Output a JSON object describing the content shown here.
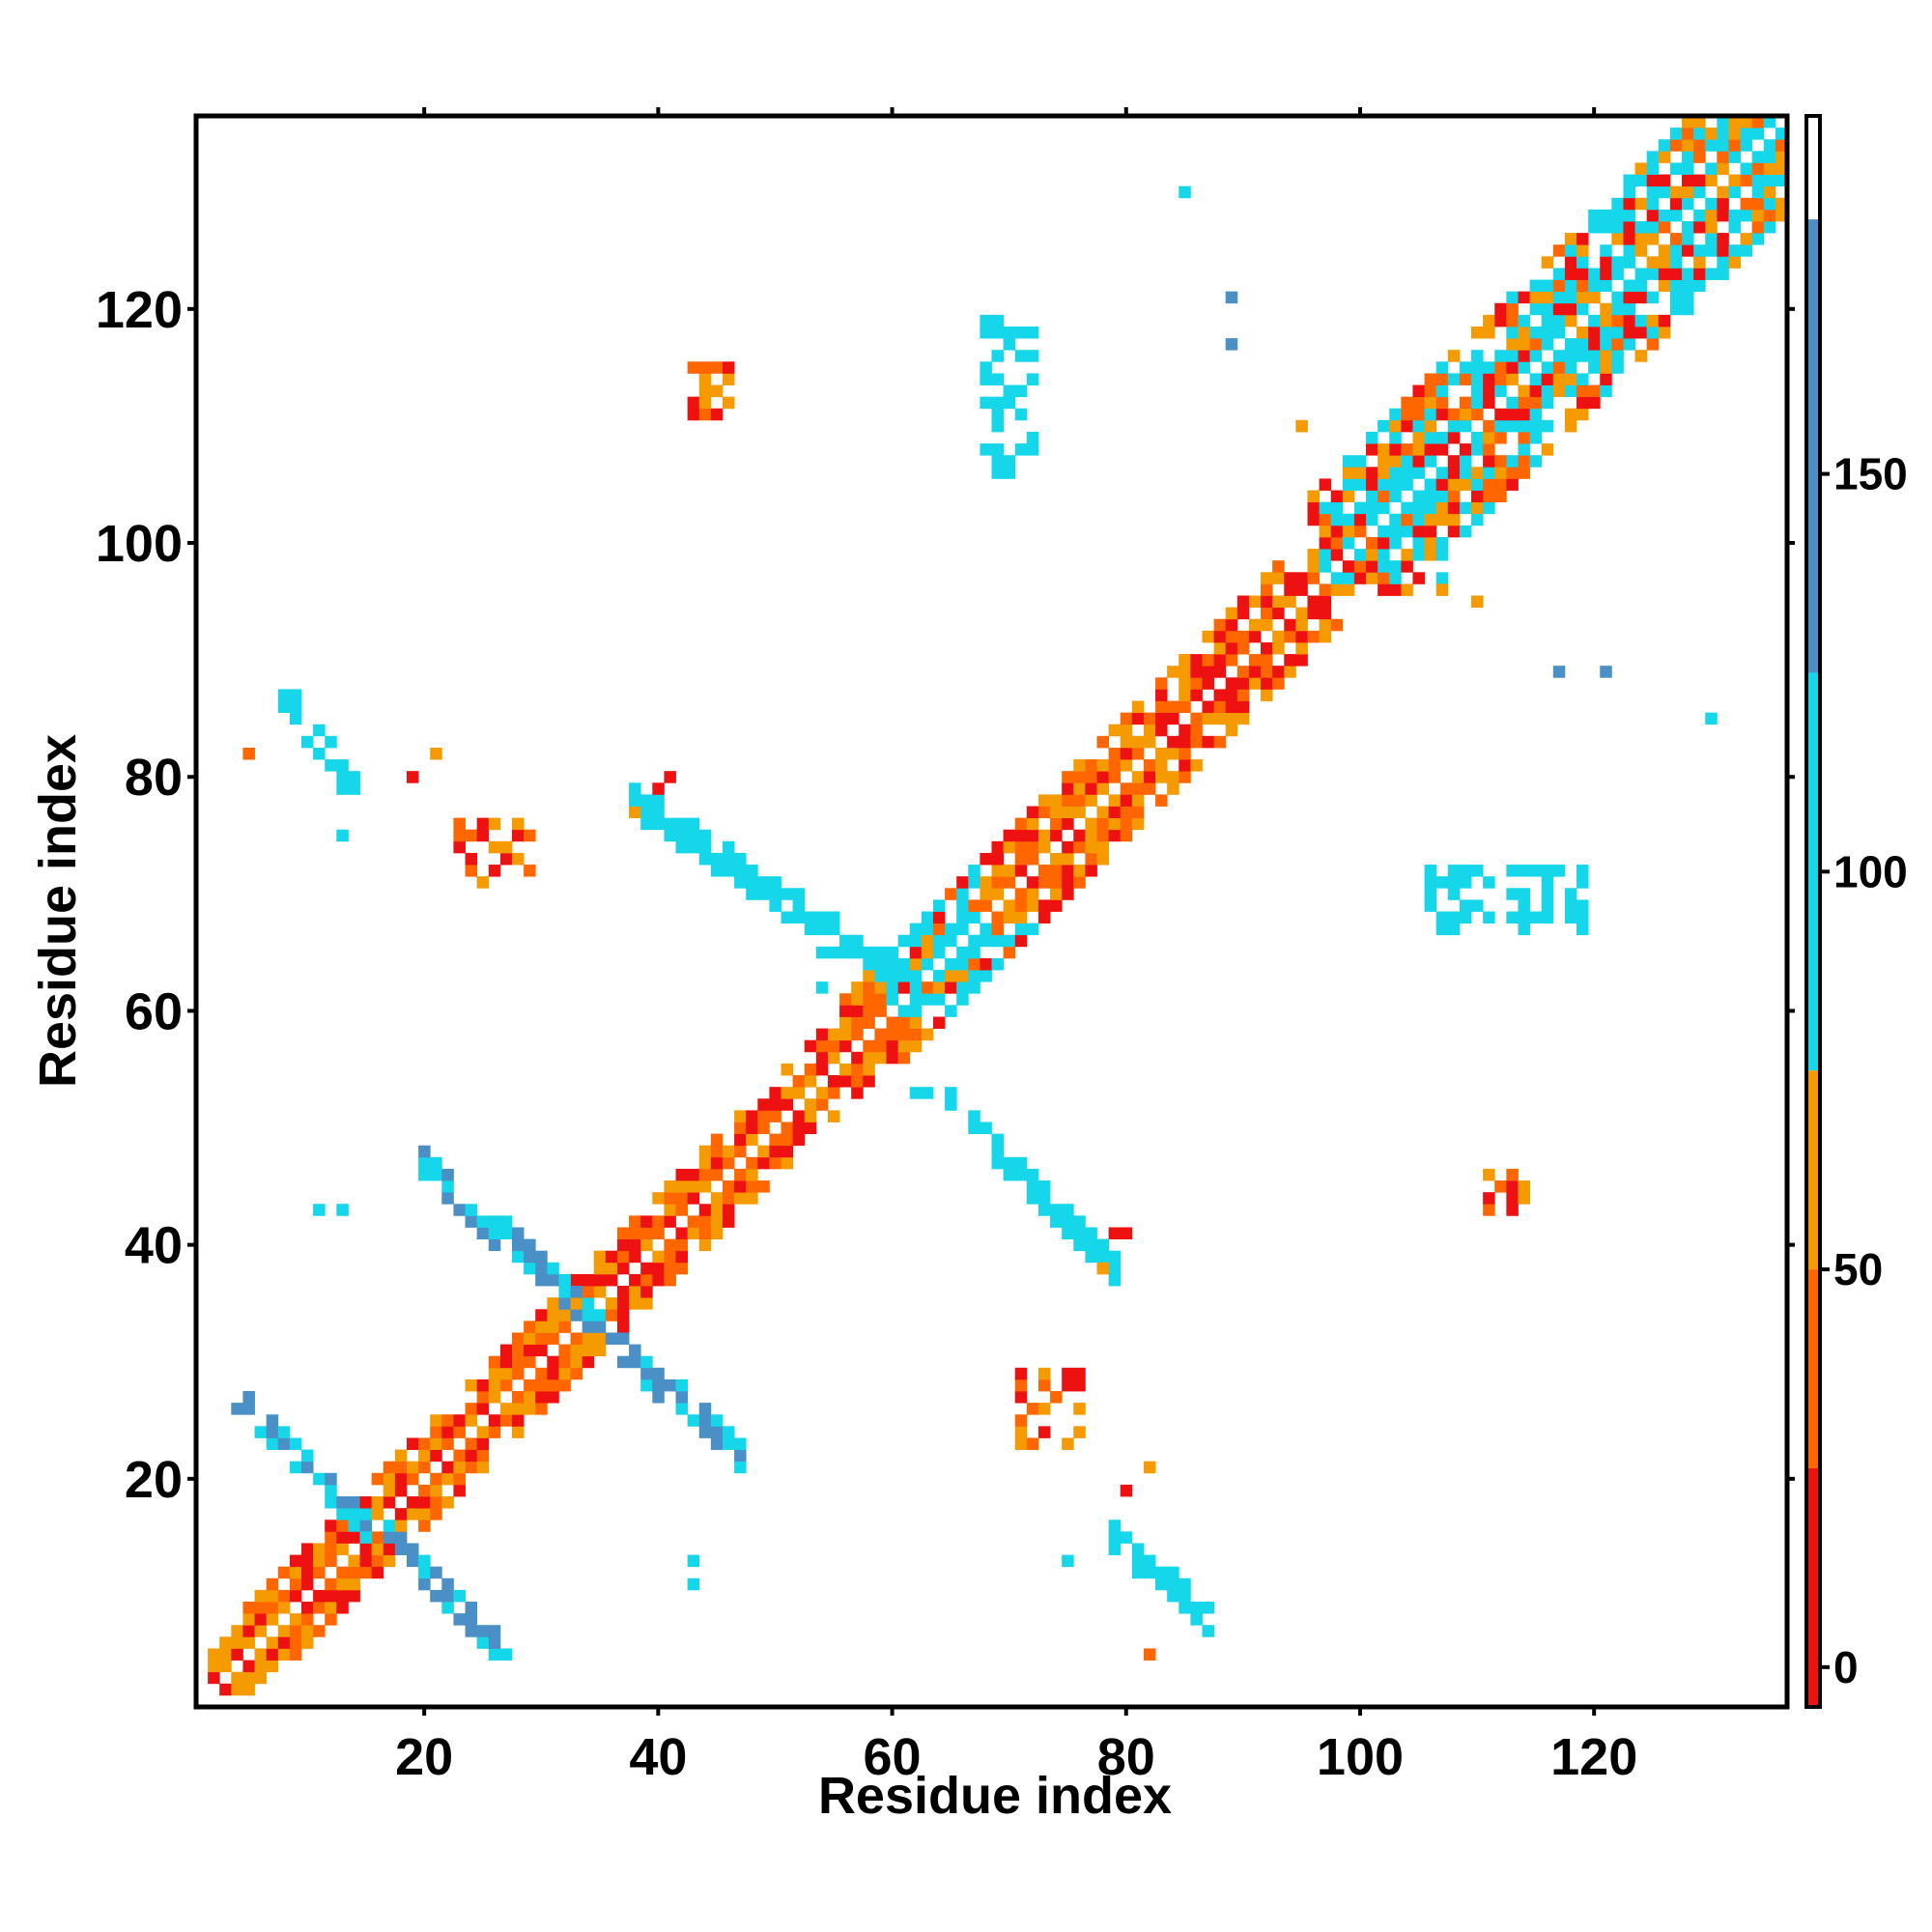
{
  "chart_data": {
    "type": "heatmap",
    "title": "",
    "xlabel": "Residue index",
    "ylabel": "Residue index",
    "xlim": [
      1,
      136
    ],
    "ylim": [
      1,
      136
    ],
    "x_ticks": [
      20,
      40,
      60,
      80,
      100,
      120
    ],
    "y_ticks": [
      20,
      40,
      60,
      80,
      100,
      120
    ],
    "grid": false,
    "colorbar": {
      "ticks": [
        0,
        50,
        100,
        150
      ],
      "range": [
        -5,
        195
      ],
      "segments": [
        {
          "from": -5,
          "to": 25,
          "color": "#ee1111"
        },
        {
          "from": 25,
          "to": 50,
          "color": "#ff6600"
        },
        {
          "from": 50,
          "to": 75,
          "color": "#f59a00"
        },
        {
          "from": 75,
          "to": 125,
          "color": "#16d7ea"
        },
        {
          "from": 125,
          "to": 182,
          "color": "#4a8fc6"
        },
        {
          "from": 182,
          "to": 195,
          "color": "#ffffff"
        }
      ]
    },
    "cell_values": {
      "red": 10,
      "orange": 40,
      "amber": 60,
      "cyan": 95,
      "blue": 150
    },
    "diagonal_band": {
      "from": 2,
      "to": 135
    },
    "regions": [
      {
        "note": "antiparallel pair",
        "x": [
          4,
          27
        ],
        "y": [
          5,
          27
        ],
        "antidiagonal": true,
        "value": 150
      },
      {
        "note": "antiparallel pair",
        "x": [
          20,
          47
        ],
        "y": [
          22,
          47
        ],
        "antidiagonal": true,
        "value": 150
      },
      {
        "note": "antiparallel pair",
        "x": [
          38,
          62
        ],
        "y": [
          62,
          78
        ],
        "antidiagonal": true,
        "value": 120
      },
      {
        "note": "antiparallel pair",
        "x": [
          67,
          79
        ],
        "y": [
          38,
          50
        ],
        "antidiagonal": true,
        "value": 120
      },
      {
        "note": "contact patch",
        "x": [
          8,
          14
        ],
        "y": [
          79,
          87
        ],
        "antidiagonal": true,
        "value": 95
      },
      {
        "note": "contact patch",
        "x": [
          79,
          87
        ],
        "y": [
          8,
          15
        ],
        "antidiagonal": true,
        "value": 95
      },
      {
        "note": "contact patch",
        "x": [
          68,
          72
        ],
        "y": [
          106,
          119
        ],
        "antidiagonal": false,
        "value": 120
      },
      {
        "note": "contact patch",
        "x": [
          106,
          119
        ],
        "y": [
          67,
          72
        ],
        "antidiagonal": false,
        "value": 120
      },
      {
        "note": "orange contacts",
        "x": [
          23,
          29
        ],
        "y": [
          71,
          76
        ],
        "antidiagonal": false,
        "value": 50
      },
      {
        "note": "orange contacts",
        "x": [
          71,
          76
        ],
        "y": [
          23,
          29
        ],
        "antidiagonal": false,
        "value": 50
      },
      {
        "note": "orange contacts",
        "x": [
          43,
          46
        ],
        "y": [
          111,
          115
        ],
        "antidiagonal": false,
        "value": 50
      },
      {
        "note": "orange contacts",
        "x": [
          111,
          115
        ],
        "y": [
          43,
          46
        ],
        "antidiagonal": false,
        "value": 50
      }
    ],
    "isolated_points": [
      {
        "x": 85,
        "y": 130,
        "value": 95
      },
      {
        "x": 89,
        "y": 121,
        "value": 150
      },
      {
        "x": 89,
        "y": 117,
        "value": 150
      },
      {
        "x": 117,
        "y": 89,
        "value": 150
      },
      {
        "x": 121,
        "y": 89,
        "value": 150
      },
      {
        "x": 130,
        "y": 85,
        "value": 95
      },
      {
        "x": 11,
        "y": 43,
        "value": 95
      },
      {
        "x": 13,
        "y": 43,
        "value": 95
      },
      {
        "x": 43,
        "y": 11,
        "value": 95
      },
      {
        "x": 43,
        "y": 13,
        "value": 95
      },
      {
        "x": 5,
        "y": 82,
        "value": 40
      },
      {
        "x": 19,
        "y": 80,
        "value": 10
      },
      {
        "x": 21,
        "y": 82,
        "value": 60
      },
      {
        "x": 13,
        "y": 75,
        "value": 95
      },
      {
        "x": 75,
        "y": 13,
        "value": 95
      },
      {
        "x": 80,
        "y": 19,
        "value": 10
      },
      {
        "x": 82,
        "y": 21,
        "value": 60
      },
      {
        "x": 82,
        "y": 5,
        "value": 40
      },
      {
        "x": 95,
        "y": 110,
        "value": 60
      },
      {
        "x": 110,
        "y": 95,
        "value": 60
      },
      {
        "x": 107,
        "y": 97,
        "value": 95
      },
      {
        "x": 107,
        "y": 96,
        "value": 50
      },
      {
        "x": 54,
        "y": 65,
        "value": 95
      },
      {
        "x": 55,
        "y": 65,
        "value": 95
      },
      {
        "x": 54,
        "y": 62,
        "value": 95
      },
      {
        "x": 62,
        "y": 53,
        "value": 95
      },
      {
        "x": 63,
        "y": 53,
        "value": 95
      },
      {
        "x": 65,
        "y": 53,
        "value": 95
      },
      {
        "x": 65,
        "y": 52,
        "value": 95
      },
      {
        "x": 40,
        "y": 79,
        "value": 10
      },
      {
        "x": 41,
        "y": 80,
        "value": 10
      },
      {
        "x": 79,
        "y": 41,
        "value": 10
      },
      {
        "x": 80,
        "y": 41,
        "value": 10
      },
      {
        "x": 78,
        "y": 38,
        "value": 60
      },
      {
        "x": 38,
        "y": 77,
        "value": 60
      }
    ]
  }
}
